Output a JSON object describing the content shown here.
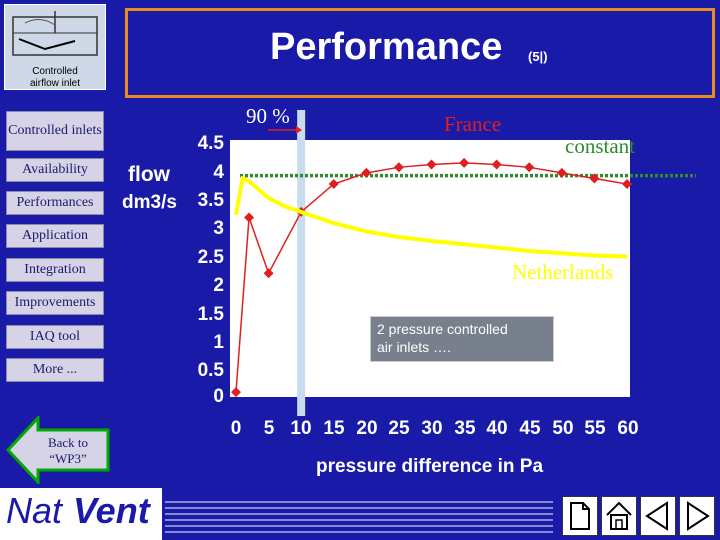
{
  "header": {
    "title": "Performance",
    "subtitle": "(5|)"
  },
  "logo": {
    "caption_line1": "Controlled",
    "caption_line2": "airflow inlet"
  },
  "nav": {
    "items": [
      {
        "label": "Controlled inlets"
      },
      {
        "label": "Availability"
      },
      {
        "label": "Performances"
      },
      {
        "label": "Application"
      },
      {
        "label": "Integration"
      },
      {
        "label": "Improvements"
      },
      {
        "label": "IAQ tool"
      },
      {
        "label": "More ..."
      }
    ],
    "back_line1": "Back to",
    "back_line2": "“WP3”"
  },
  "brand": {
    "nat": "Nat",
    "vent": "Vent"
  },
  "annotations": {
    "ninety": "90 %",
    "france": "France",
    "constant": "constant",
    "netherlands": "Netherlands",
    "box_line1": "2 pressure controlled",
    "box_line2": "air inlets …."
  },
  "colors": {
    "background": "#1a1aa8",
    "title_border": "#e88a20",
    "france": "#e02020",
    "netherlands": "#ffff00",
    "constant": "#2e8b2e",
    "band": "#c8dcf0"
  },
  "chart_data": {
    "type": "line",
    "xlabel": "pressure difference in Pa",
    "ylabel_line1": "flow",
    "ylabel_line2": "dm3/s",
    "xlim": [
      0,
      60
    ],
    "ylim": [
      0,
      4.5
    ],
    "x_ticks": [
      "0",
      "5",
      "10",
      "15",
      "20",
      "25",
      "30",
      "35",
      "40",
      "45",
      "50",
      "55",
      "60"
    ],
    "y_ticks": [
      "4.5",
      "4",
      "3.5",
      "3",
      "2.5",
      "2",
      "1.5",
      "1",
      "0.5",
      "0"
    ],
    "constant_level": 3.95,
    "band_x": 10,
    "series": [
      {
        "name": "France",
        "color": "#e02020",
        "x": [
          0,
          2,
          5,
          10,
          15,
          20,
          25,
          30,
          35,
          40,
          45,
          50,
          55,
          60
        ],
        "y": [
          0.07,
          3.2,
          2.2,
          3.3,
          3.8,
          4.0,
          4.1,
          4.15,
          4.18,
          4.15,
          4.1,
          4.0,
          3.9,
          3.8
        ]
      },
      {
        "name": "Netherlands",
        "color": "#ffff00",
        "x": [
          0,
          1,
          2,
          3,
          5,
          7.5,
          10,
          15,
          20,
          25,
          30,
          35,
          40,
          45,
          50,
          55,
          60
        ],
        "y": [
          3.25,
          3.9,
          3.85,
          3.75,
          3.55,
          3.4,
          3.3,
          3.1,
          2.95,
          2.85,
          2.78,
          2.72,
          2.66,
          2.6,
          2.56,
          2.52,
          2.5
        ]
      }
    ]
  }
}
